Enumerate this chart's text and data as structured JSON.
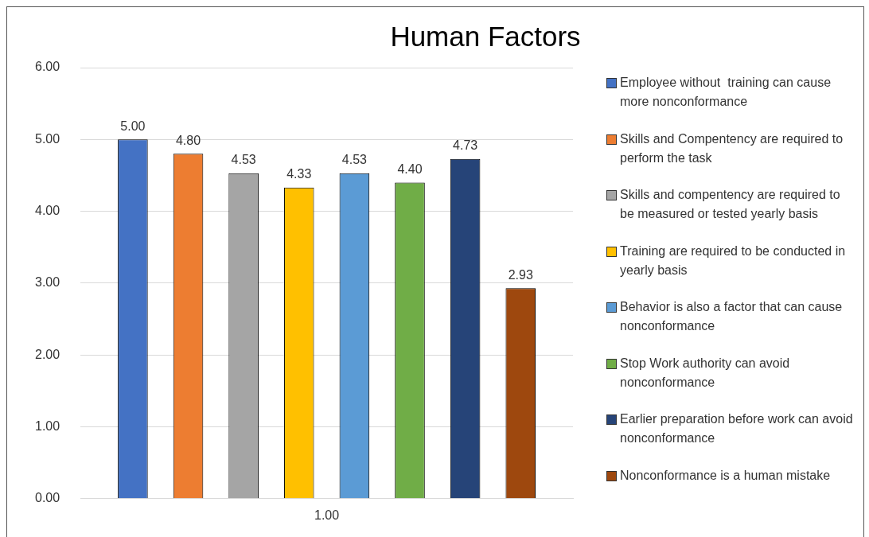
{
  "chart_data": {
    "type": "bar",
    "title": "Human Factors",
    "categories": [
      "1.00"
    ],
    "series": [
      {
        "name": "Employee without  training can cause more nonconformance",
        "color": "#4472c4",
        "values": [
          5.0
        ],
        "value_labels": [
          "5.00"
        ]
      },
      {
        "name": "Skills and Compentency are required to perform the task",
        "color": "#ed7d31",
        "values": [
          4.8
        ],
        "value_labels": [
          "4.80"
        ]
      },
      {
        "name": "Skills and compentency are required to be measured or tested yearly basis",
        "color": "#a5a5a5",
        "values": [
          4.53
        ],
        "value_labels": [
          "4.53"
        ]
      },
      {
        "name": "Training are required to be conducted in yearly basis",
        "color": "#ffc000",
        "values": [
          4.33
        ],
        "value_labels": [
          "4.33"
        ]
      },
      {
        "name": "Behavior is also a factor that can cause nonconformance",
        "color": "#5b9bd5",
        "values": [
          4.53
        ],
        "value_labels": [
          "4.53"
        ]
      },
      {
        "name": "Stop Work authority can avoid nonconformance",
        "color": "#70ad47",
        "values": [
          4.4
        ],
        "value_labels": [
          "4.40"
        ]
      },
      {
        "name": "Earlier preparation before work can avoid nonconformance",
        "color": "#264478",
        "values": [
          4.73
        ],
        "value_labels": [
          "4.73"
        ]
      },
      {
        "name": "Nonconformance is a human mistake",
        "color": "#9e480e",
        "values": [
          2.93
        ],
        "value_labels": [
          "2.93"
        ]
      }
    ],
    "ylim": [
      0,
      6
    ],
    "yticks": [
      {
        "value": 0,
        "label": "0.00"
      },
      {
        "value": 1,
        "label": "1.00"
      },
      {
        "value": 2,
        "label": "2.00"
      },
      {
        "value": 3,
        "label": "3.00"
      },
      {
        "value": 4,
        "label": "4.00"
      },
      {
        "value": 5,
        "label": "5.00"
      },
      {
        "value": 6,
        "label": "6.00"
      }
    ],
    "grid": "y",
    "legend": "right"
  }
}
